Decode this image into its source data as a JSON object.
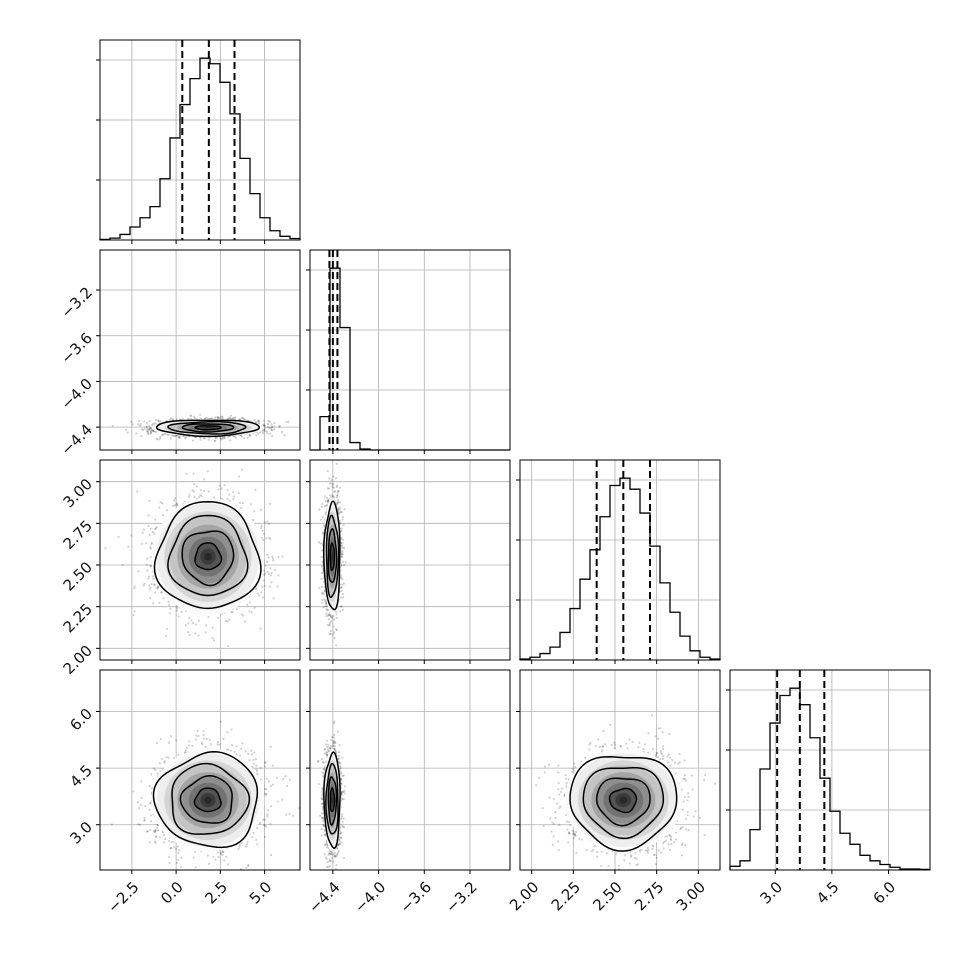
{
  "figure": {
    "style": {
      "frame_color": "#000000",
      "grid_color": "#b0b0b0",
      "hist_color": "#000000",
      "quantile_line_color": "#000000",
      "density_colormap": [
        "#ffffff",
        "#000000"
      ],
      "scatter_color": "#000000",
      "grid": true
    }
  },
  "chart_data": {
    "type": "corner",
    "parameters": [
      {
        "index": 0,
        "range": [
          -4.3,
          7.0
        ],
        "ticks": [
          -2.5,
          0.0,
          2.5,
          5.0
        ],
        "tick_labels": [
          "−2.5",
          "0.0",
          "2.5",
          "5.0"
        ],
        "quantiles": [
          0.35,
          1.85,
          3.3
        ],
        "histogram": {
          "bin_edges": [
            -4.3,
            -3.735,
            -3.17,
            -2.605,
            -2.04,
            -1.475,
            -0.91,
            -0.345,
            0.22,
            0.785,
            1.35,
            1.915,
            2.48,
            3.045,
            3.61,
            4.175,
            4.74,
            5.305,
            5.87,
            6.435,
            7.0
          ],
          "counts": [
            0.3,
            1,
            3,
            7,
            12,
            18,
            33,
            55,
            73,
            87,
            98,
            95,
            85,
            68,
            44,
            25,
            12,
            5,
            2,
            0.8
          ]
        }
      },
      {
        "index": 1,
        "range": [
          -4.6,
          -2.85
        ],
        "ticks": [
          -4.4,
          -4.0,
          -3.6,
          -3.2
        ],
        "tick_labels": [
          "−4.4",
          "−4.0",
          "−3.6",
          "−3.2"
        ],
        "quantiles": [
          -4.43,
          -4.4,
          -4.36
        ],
        "histogram": {
          "bin_edges": [
            -4.6,
            -4.5125,
            -4.425,
            -4.3375,
            -4.25,
            -4.1625,
            -4.075,
            -3.9875,
            -3.9,
            -3.8125,
            -3.725,
            -3.6375,
            -3.55,
            -3.4625,
            -3.375,
            -3.2875,
            -3.2,
            -3.1125,
            -3.025,
            -2.9375,
            -2.85
          ],
          "counts": [
            0,
            18,
            98,
            66,
            4,
            0.5,
            0,
            0,
            0,
            0,
            0,
            0,
            0,
            0,
            0,
            0,
            0,
            0,
            0,
            0
          ]
        }
      },
      {
        "index": 2,
        "range": [
          1.93,
          3.13
        ],
        "ticks": [
          2.0,
          2.25,
          2.5,
          2.75,
          3.0
        ],
        "tick_labels": [
          "2.00",
          "2.25",
          "2.50",
          "2.75",
          "3.00"
        ],
        "quantiles": [
          2.39,
          2.55,
          2.71
        ],
        "histogram": {
          "bin_edges": [
            1.93,
            1.99,
            2.05,
            2.11,
            2.17,
            2.23,
            2.29,
            2.35,
            2.41,
            2.47,
            2.53,
            2.59,
            2.65,
            2.71,
            2.77,
            2.83,
            2.89,
            2.95,
            3.01,
            3.07,
            3.13
          ],
          "counts": [
            0.5,
            1.5,
            3.5,
            7,
            15,
            28,
            44,
            60,
            78,
            95,
            99,
            93,
            80,
            62,
            42,
            26,
            13,
            5,
            1.5,
            0.5
          ]
        }
      },
      {
        "index": 3,
        "range": [
          1.8,
          7.1
        ],
        "ticks": [
          3.0,
          4.5,
          6.0
        ],
        "tick_labels": [
          "3.0",
          "4.5",
          "6.0"
        ],
        "quantiles": [
          3.05,
          3.65,
          4.3
        ],
        "histogram": {
          "bin_edges": [
            1.8,
            2.065,
            2.33,
            2.595,
            2.86,
            3.125,
            3.39,
            3.655,
            3.92,
            4.185,
            4.45,
            4.715,
            4.98,
            5.245,
            5.51,
            5.775,
            6.04,
            6.305,
            6.57,
            6.835,
            7.1
          ],
          "counts": [
            2,
            5,
            22,
            55,
            80,
            95,
            99,
            90,
            72,
            50,
            32,
            20,
            14,
            8,
            5,
            3,
            1.5,
            0.5,
            0.5,
            0.3
          ]
        }
      }
    ],
    "pairs": [
      {
        "x": 0,
        "y": 1,
        "mean": [
          1.8,
          -4.405
        ],
        "std": [
          1.45,
          0.035
        ],
        "rho": 0.02,
        "points": 2500
      },
      {
        "x": 0,
        "y": 2,
        "mean": [
          1.8,
          2.55
        ],
        "std": [
          1.45,
          0.16
        ],
        "rho": 0.02,
        "points": 2500
      },
      {
        "x": 1,
        "y": 2,
        "mean": [
          -4.405,
          2.55
        ],
        "std": [
          0.035,
          0.16
        ],
        "rho": 0.0,
        "points": 2500
      },
      {
        "x": 0,
        "y": 3,
        "mean": [
          1.8,
          3.65
        ],
        "std": [
          1.45,
          0.62
        ],
        "rho": 0.02,
        "points": 2500
      },
      {
        "x": 1,
        "y": 3,
        "mean": [
          -4.405,
          3.65
        ],
        "std": [
          0.035,
          0.62
        ],
        "rho": 0.0,
        "points": 2500
      },
      {
        "x": 2,
        "y": 3,
        "mean": [
          2.55,
          3.65
        ],
        "std": [
          0.16,
          0.62
        ],
        "rho": 0.0,
        "points": 2500
      }
    ],
    "contour_levels_sigma": [
      0.5,
      1.0,
      1.5,
      2.0
    ]
  }
}
